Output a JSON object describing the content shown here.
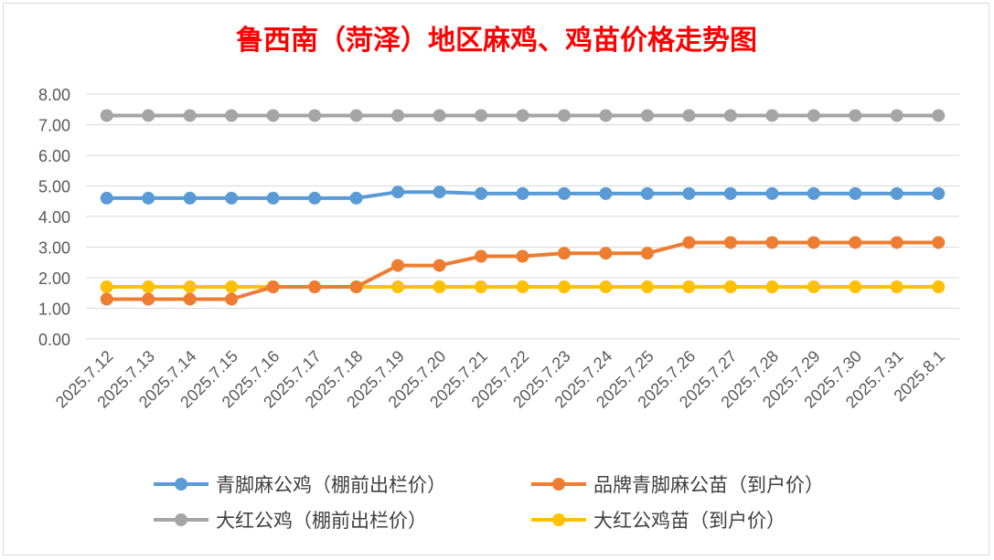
{
  "chart_data": {
    "type": "line",
    "title": "鲁西南（菏泽）地区麻鸡、鸡苗价格走势图",
    "title_color": "#ff0000",
    "categories": [
      "2025.7.12",
      "2025.7.13",
      "2025.7.14",
      "2025.7.15",
      "2025.7.16",
      "2025.7.17",
      "2025.7.18",
      "2025.7.19",
      "2025.7.20",
      "2025.7.21",
      "2025.7.22",
      "2025.7.23",
      "2025.7.24",
      "2025.7.25",
      "2025.7.26",
      "2025.7.27",
      "2025.7.28",
      "2025.7.29",
      "2025.7.30",
      "2025.7.31",
      "2025.8.1"
    ],
    "ylim": [
      0,
      8
    ],
    "yticks": [
      "0.00",
      "1.00",
      "2.00",
      "3.00",
      "4.00",
      "5.00",
      "6.00",
      "7.00",
      "8.00"
    ],
    "grid": true,
    "legend_position": "bottom",
    "series": [
      {
        "name": "青脚麻公鸡（棚前出栏价）",
        "color": "#5b9bd5",
        "values": [
          4.6,
          4.6,
          4.6,
          4.6,
          4.6,
          4.6,
          4.6,
          4.8,
          4.8,
          4.75,
          4.75,
          4.75,
          4.75,
          4.75,
          4.75,
          4.75,
          4.75,
          4.75,
          4.75,
          4.75,
          4.75
        ]
      },
      {
        "name": "品牌青脚麻公苗（到户价）",
        "color": "#ed7d31",
        "values": [
          1.3,
          1.3,
          1.3,
          1.3,
          1.7,
          1.7,
          1.7,
          2.4,
          2.4,
          2.7,
          2.7,
          2.8,
          2.8,
          2.8,
          3.15,
          3.15,
          3.15,
          3.15,
          3.15,
          3.15,
          3.15
        ]
      },
      {
        "name": "大红公鸡（棚前出栏价）",
        "color": "#a5a5a5",
        "values": [
          7.3,
          7.3,
          7.3,
          7.3,
          7.3,
          7.3,
          7.3,
          7.3,
          7.3,
          7.3,
          7.3,
          7.3,
          7.3,
          7.3,
          7.3,
          7.3,
          7.3,
          7.3,
          7.3,
          7.3,
          7.3
        ]
      },
      {
        "name": "大红公鸡苗（到户价）",
        "color": "#ffc000",
        "values": [
          1.7,
          1.7,
          1.7,
          1.7,
          1.7,
          1.7,
          1.7,
          1.7,
          1.7,
          1.7,
          1.7,
          1.7,
          1.7,
          1.7,
          1.7,
          1.7,
          1.7,
          1.7,
          1.7,
          1.7,
          1.7
        ]
      }
    ]
  }
}
